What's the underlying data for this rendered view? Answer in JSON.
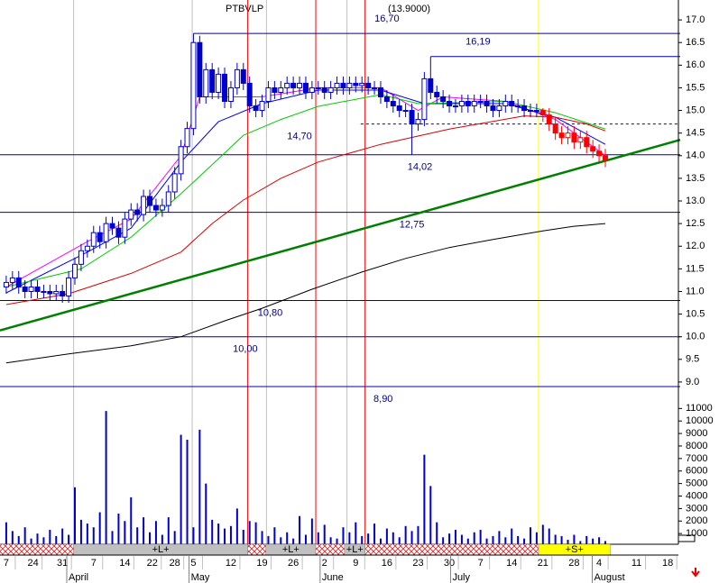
{
  "chart_data": {
    "type": "candlestick",
    "title": "PTBVLP",
    "last": "(13.9000)",
    "xlim": [
      -1,
      108
    ],
    "ylim": [
      8.68,
      17.44
    ],
    "yticks": [
      {
        "value": 9,
        "label": "9.0"
      },
      {
        "value": 9.5,
        "label": "9.5"
      },
      {
        "value": 10,
        "label": "10.0"
      },
      {
        "value": 10.5,
        "label": "10.5"
      },
      {
        "value": 11,
        "label": "11.0"
      },
      {
        "value": 11.5,
        "label": "11.5"
      },
      {
        "value": 12,
        "label": "12.0"
      },
      {
        "value": 12.5,
        "label": "12.5"
      },
      {
        "value": 13,
        "label": "13.0"
      },
      {
        "value": 13.5,
        "label": "13.5"
      },
      {
        "value": 14,
        "label": "14.0"
      },
      {
        "value": 14.5,
        "label": "14.5"
      },
      {
        "value": 15,
        "label": "15.0"
      },
      {
        "value": 15.5,
        "label": "15.5"
      },
      {
        "value": 16,
        "label": "16.0"
      },
      {
        "value": 16.5,
        "label": "16.5"
      },
      {
        "value": 17,
        "label": "17.0"
      }
    ],
    "xticks": [
      {
        "value": 0,
        "label": "7"
      },
      {
        "value": 4.3,
        "label": "24"
      },
      {
        "value": 9,
        "label": "31"
      },
      {
        "value": 14,
        "label": "7"
      },
      {
        "value": 19,
        "label": "14"
      },
      {
        "value": 23.4,
        "label": "22"
      },
      {
        "value": 27,
        "label": "28"
      },
      {
        "value": 30,
        "label": "5"
      },
      {
        "value": 36,
        "label": "12"
      },
      {
        "value": 41,
        "label": "19"
      },
      {
        "value": 46,
        "label": "26"
      },
      {
        "value": 51,
        "label": "2"
      },
      {
        "value": 56,
        "label": "9"
      },
      {
        "value": 61,
        "label": "16"
      },
      {
        "value": 66,
        "label": "23"
      },
      {
        "value": 71,
        "label": "30"
      },
      {
        "value": 76,
        "label": "7"
      },
      {
        "value": 81,
        "label": "14"
      },
      {
        "value": 86,
        "label": "21"
      },
      {
        "value": 91,
        "label": "28"
      },
      {
        "value": 95,
        "label": "4"
      },
      {
        "value": 101,
        "label": "11"
      },
      {
        "value": 106,
        "label": "18"
      }
    ],
    "months": [
      {
        "value": 9.7,
        "label": "April"
      },
      {
        "value": 29.3,
        "label": "May"
      },
      {
        "value": 50.3,
        "label": "June"
      },
      {
        "value": 71.2,
        "label": "July"
      },
      {
        "value": 93.9,
        "label": "August"
      }
    ],
    "candles": {
      "color": "#0000cc",
      "open": [
        11.1,
        11.2,
        11.3,
        11.1,
        11.0,
        11.1,
        11.0,
        11.0,
        10.95,
        11.0,
        10.9,
        11.3,
        11.6,
        11.9,
        12.0,
        12.3,
        12.1,
        12.5,
        12.4,
        12.2,
        12.6,
        12.8,
        12.7,
        13.1,
        12.9,
        12.8,
        12.9,
        13.2,
        13.6,
        14.2,
        14.6,
        16.5,
        15.3,
        15.9,
        15.4,
        15.8,
        15.2,
        15.5,
        15.9,
        15.6,
        15.1,
        15.0,
        15.2,
        15.5,
        15.4,
        15.5,
        15.6,
        15.5,
        15.6,
        15.4,
        15.5,
        15.5,
        15.4,
        15.5,
        15.6,
        15.5,
        15.6,
        15.55,
        15.6,
        15.5,
        15.5,
        15.3,
        15.2,
        15.1,
        15.0,
        15.0,
        14.7,
        14.8,
        15.7,
        15.4,
        15.3,
        15.2,
        15.1,
        15.1,
        15.2,
        15.1,
        15.2,
        15.2,
        15.1,
        15.0,
        15.1,
        15.2,
        15.1,
        15.1,
        15.0,
        15.0,
        15.0,
        14.9,
        14.7,
        14.5,
        14.4,
        14.5,
        14.3,
        14.4,
        14.2,
        14.1,
        14.0
      ],
      "high": [
        11.35,
        11.45,
        11.45,
        11.25,
        11.25,
        11.25,
        11.15,
        11.15,
        11.15,
        11.15,
        11.45,
        11.75,
        12.05,
        12.15,
        12.45,
        12.45,
        12.65,
        12.65,
        12.55,
        12.75,
        12.95,
        12.95,
        13.25,
        13.25,
        13.05,
        13.05,
        13.35,
        13.75,
        14.35,
        14.75,
        16.7,
        16.65,
        16.05,
        16.05,
        15.95,
        15.95,
        15.65,
        16.05,
        16.05,
        15.75,
        15.25,
        15.35,
        15.65,
        15.65,
        15.65,
        15.75,
        15.75,
        15.75,
        15.75,
        15.65,
        15.65,
        15.65,
        15.65,
        15.75,
        15.75,
        15.75,
        15.75,
        15.75,
        15.75,
        15.65,
        15.65,
        15.45,
        15.35,
        15.25,
        15.15,
        15.15,
        14.95,
        15.85,
        16.19,
        15.55,
        15.45,
        15.35,
        15.25,
        15.35,
        15.35,
        15.35,
        15.35,
        15.35,
        15.25,
        15.25,
        15.35,
        15.35,
        15.25,
        15.25,
        15.15,
        15.15,
        15.05,
        15.05,
        14.85,
        14.65,
        14.65,
        14.65,
        14.55,
        14.55,
        14.35,
        14.25,
        14.15
      ],
      "low": [
        10.95,
        11.05,
        10.95,
        10.85,
        10.85,
        10.85,
        10.85,
        10.8,
        10.8,
        10.75,
        10.75,
        11.15,
        11.45,
        11.75,
        11.85,
        11.95,
        11.95,
        12.25,
        12.05,
        12.05,
        12.45,
        12.55,
        12.55,
        12.75,
        12.65,
        12.65,
        12.75,
        13.05,
        13.45,
        14.05,
        14.45,
        15.15,
        15.15,
        15.25,
        15.25,
        15.05,
        15.05,
        15.35,
        15.45,
        14.95,
        14.85,
        14.85,
        15.05,
        15.25,
        15.25,
        15.35,
        15.35,
        15.35,
        15.25,
        15.25,
        15.35,
        15.25,
        15.25,
        15.35,
        15.35,
        15.35,
        15.4,
        15.4,
        15.35,
        15.35,
        15.15,
        15.05,
        14.95,
        14.85,
        14.85,
        14.02,
        14.55,
        14.65,
        15.25,
        15.15,
        15.05,
        14.95,
        14.95,
        14.95,
        14.95,
        14.95,
        15.05,
        14.95,
        14.85,
        14.85,
        14.95,
        14.95,
        14.95,
        14.85,
        14.85,
        14.85,
        14.75,
        14.55,
        14.35,
        14.25,
        14.25,
        14.15,
        14.15,
        14.05,
        13.95,
        13.85,
        13.75
      ],
      "close": [
        11.2,
        11.3,
        11.1,
        11.0,
        11.1,
        11.0,
        11.0,
        10.95,
        11.0,
        10.9,
        11.3,
        11.6,
        11.9,
        12.0,
        12.3,
        12.1,
        12.5,
        12.4,
        12.2,
        12.6,
        12.8,
        12.7,
        13.1,
        12.9,
        12.8,
        12.9,
        13.2,
        13.6,
        14.2,
        14.6,
        16.5,
        15.3,
        15.9,
        15.4,
        15.8,
        15.2,
        15.5,
        15.9,
        15.6,
        15.1,
        15.0,
        15.2,
        15.5,
        15.4,
        15.5,
        15.6,
        15.5,
        15.6,
        15.4,
        15.5,
        15.5,
        15.4,
        15.5,
        15.6,
        15.5,
        15.6,
        15.55,
        15.6,
        15.5,
        15.5,
        15.3,
        15.2,
        15.1,
        15.0,
        15.0,
        14.7,
        14.8,
        15.7,
        15.4,
        15.3,
        15.2,
        15.1,
        15.1,
        15.2,
        15.1,
        15.2,
        15.2,
        15.1,
        15.0,
        15.1,
        15.2,
        15.1,
        15.1,
        15.0,
        15.0,
        15.0,
        14.9,
        14.7,
        14.5,
        14.4,
        14.5,
        14.3,
        14.4,
        14.2,
        14.1,
        14.0,
        13.9
      ]
    },
    "series": [
      {
        "color": "#ff00ff",
        "x": [
          0,
          13,
          20,
          28,
          31,
          41,
          50,
          60,
          66,
          70,
          80,
          88,
          96
        ],
        "values": [
          11.1,
          12.1,
          12.6,
          14.0,
          15.3,
          15.3,
          15.5,
          15.5,
          15.0,
          15.3,
          15.2,
          14.8,
          14.0
        ]
      },
      {
        "color": "#0000ff",
        "x": [
          0,
          13,
          20,
          28,
          34,
          41,
          50,
          60,
          67,
          80,
          88,
          96
        ],
        "values": [
          10.97,
          11.87,
          12.4,
          13.86,
          14.75,
          15.15,
          15.45,
          15.45,
          15.15,
          15.15,
          14.85,
          14.25
        ]
      },
      {
        "color": "#00cc00",
        "x": [
          0,
          12,
          20,
          28,
          33,
          38,
          44,
          50,
          60,
          66,
          80,
          88,
          96
        ],
        "values": [
          11.1,
          11.5,
          12.2,
          13.16,
          13.8,
          14.45,
          14.8,
          15.09,
          15.35,
          15.15,
          15.2,
          14.95,
          14.59
        ]
      },
      {
        "color": "#dd0000",
        "x": [
          0,
          10,
          20,
          28,
          33,
          38,
          44,
          50,
          60,
          71,
          83,
          88,
          93,
          96
        ],
        "values": [
          10.71,
          10.95,
          11.4,
          11.87,
          12.5,
          13.02,
          13.5,
          13.86,
          14.25,
          14.59,
          14.88,
          14.85,
          14.7,
          14.55
        ]
      },
      {
        "color": "#000000",
        "x": [
          0,
          10,
          20,
          28,
          35,
          41,
          49,
          57,
          64,
          71,
          78,
          86,
          91,
          96
        ],
        "values": [
          9.42,
          9.62,
          9.8,
          10.0,
          10.35,
          10.63,
          11.05,
          11.43,
          11.73,
          11.97,
          12.15,
          12.34,
          12.44,
          12.5
        ]
      }
    ],
    "trendline": {
      "color": "#008000",
      "x": [
        -1,
        108
      ],
      "values": [
        10.14,
        14.35
      ]
    },
    "levels": [
      {
        "value": 16.7,
        "label": "16,70",
        "start": 30,
        "label_x": 61,
        "label_side": "above"
      },
      {
        "value": 16.19,
        "label": "16,19",
        "start": 68,
        "label_x": 75.6,
        "label_side": "above"
      },
      {
        "value": 14.7,
        "label": "14,70",
        "start": 56.8,
        "label_x": 47,
        "label_side": "below",
        "dashed": true
      },
      {
        "value": 14.02,
        "label": "14,02",
        "start": -1,
        "label_x": 66.3,
        "label_side": "below"
      },
      {
        "value": 12.75,
        "label": "12,75",
        "start": -1,
        "label_x": 65,
        "label_side": "below"
      },
      {
        "value": 10.8,
        "label": "10,80",
        "start": -1,
        "label_x": 42.3,
        "label_side": "below"
      },
      {
        "value": 10,
        "label": "10,00",
        "start": -1,
        "label_x": 38.3,
        "label_side": "below"
      },
      {
        "value": 8.9,
        "label": "8,90",
        "start": -1,
        "label_x": 60.4,
        "label_side": "below"
      }
    ],
    "vertical_lines": [
      {
        "x": 10.8,
        "color": "#c0c0c0"
      },
      {
        "x": 29.8,
        "color": "#c0c0c0"
      },
      {
        "x": 41.7,
        "color": "#c0c0c0"
      },
      {
        "x": 54.6,
        "color": "#c0c0c0"
      },
      {
        "x": 38.7,
        "color": "#ff0000"
      },
      {
        "x": 49.6,
        "color": "#ff0000"
      },
      {
        "x": 57.5,
        "color": "#ff0000"
      },
      {
        "x": 85.3,
        "color": "#ffff00"
      }
    ],
    "volume": {
      "color": "#0000cc",
      "ylim": [
        0,
        11600
      ],
      "yticks": [
        1000,
        2000,
        3000,
        4000,
        5000,
        6000,
        7000,
        8000,
        9000,
        10000,
        11000
      ],
      "values": [
        1900,
        1200,
        800,
        1500,
        600,
        1000,
        700,
        1300,
        800,
        1400,
        900,
        4700,
        2100,
        1800,
        1500,
        2700,
        10800,
        1200,
        2600,
        2000,
        3900,
        1500,
        2300,
        1100,
        2000,
        900,
        2300,
        1200,
        8900,
        8500,
        1500,
        9300,
        5000,
        2100,
        1800,
        1400,
        1600,
        3000,
        1300,
        2000,
        1900,
        1200,
        800,
        1500,
        700,
        1100,
        600,
        2400,
        900,
        2200,
        1100,
        1700,
        700,
        600,
        1500,
        1100,
        1900,
        800,
        1000,
        1800,
        600,
        1400,
        1100,
        700,
        1600,
        1200,
        1600,
        7300,
        4800,
        1900,
        700,
        1000,
        1300,
        900,
        600,
        1100,
        1300,
        600,
        800,
        1200,
        700,
        1400,
        800,
        600,
        1500,
        1100,
        1700,
        1400,
        900,
        800,
        500,
        900,
        400,
        800,
        600,
        700,
        400
      ]
    },
    "signals": [
      {
        "start": -1,
        "end": 10.8,
        "fill": "hatch"
      },
      {
        "start": 10.8,
        "end": 38.7,
        "fill": "#c0c0c0",
        "label": "+L+"
      },
      {
        "start": 38.7,
        "end": 41.6,
        "fill": "hatch"
      },
      {
        "start": 41.6,
        "end": 49.6,
        "fill": "#c0c0c0",
        "label": "+L+"
      },
      {
        "start": 49.6,
        "end": 54.2,
        "fill": "hatch"
      },
      {
        "start": 54.2,
        "end": 57.5,
        "fill": "#c0c0c0",
        "label": "+L+"
      },
      {
        "start": 57.5,
        "end": 85.3,
        "fill": "hatch"
      },
      {
        "start": 85.3,
        "end": 96.8,
        "fill": "#ffff00",
        "label": "+S+",
        "candle_color": "#ff0000"
      }
    ]
  }
}
